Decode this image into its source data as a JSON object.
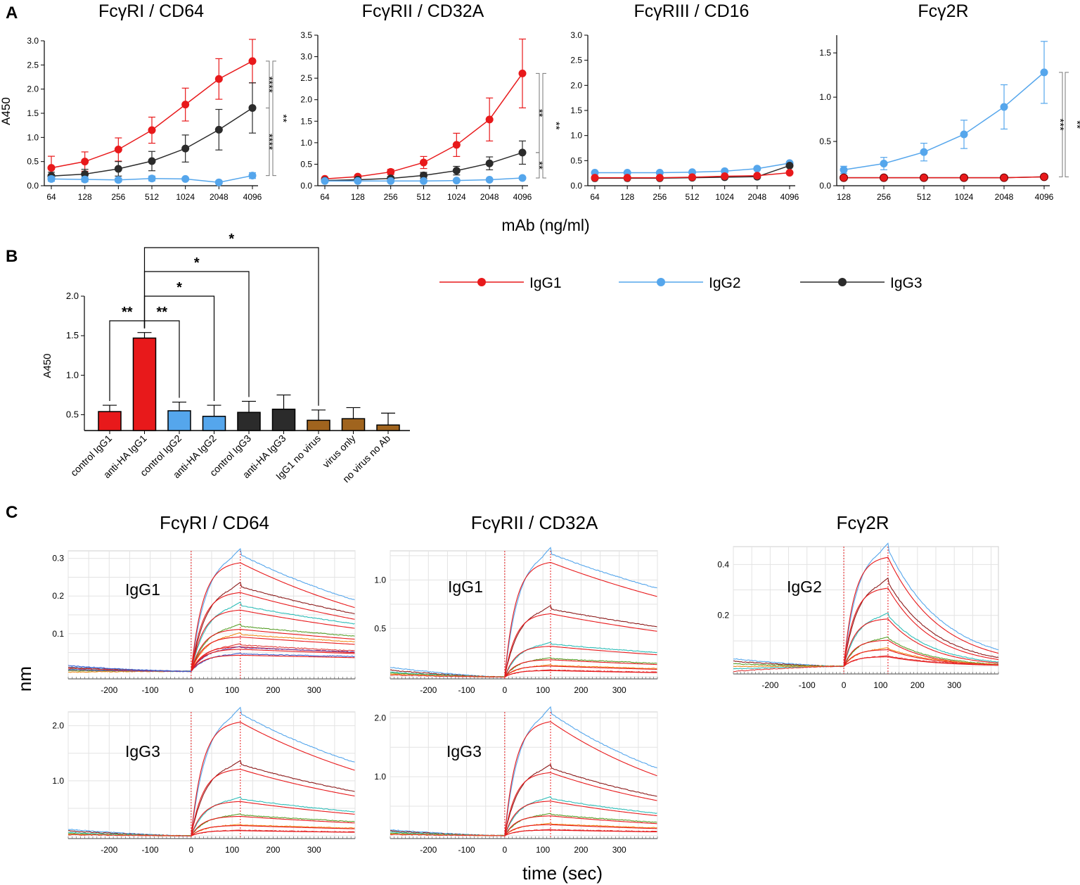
{
  "colors": {
    "igg1": "#e8191b",
    "igg2": "#55a6ec",
    "igg3": "#2b2b2b",
    "brown": "#a0641e",
    "grid": "#e3e3e3",
    "dashed": "#e8191b"
  },
  "panel_labels": {
    "a": "A",
    "b": "B",
    "c": "C"
  },
  "legend": [
    {
      "name": "IgG1",
      "color_key": "igg1"
    },
    {
      "name": "IgG2",
      "color_key": "igg2"
    },
    {
      "name": "IgG3",
      "color_key": "igg3"
    }
  ],
  "shared_labels": {
    "a_ylabel": "A450",
    "a_xlabel": "mAb (ng/ml)",
    "c_ylabel": "nm",
    "c_xlabel": "time (sec)"
  },
  "chart_data": [
    {
      "id": "a1",
      "type": "line",
      "title": "FcγRI / CD64",
      "categories": [
        "64",
        "128",
        "256",
        "512",
        "1024",
        "2048",
        "4096"
      ],
      "ylim": [
        0,
        3.0
      ],
      "yticks": [
        "0.0",
        "0.5",
        "1.0",
        "1.5",
        "2.0",
        "2.5",
        "3.0"
      ],
      "series": [
        {
          "name": "IgG1",
          "values": [
            0.37,
            0.5,
            0.75,
            1.15,
            1.68,
            2.21,
            2.58
          ],
          "errors": [
            0.24,
            0.2,
            0.24,
            0.27,
            0.34,
            0.42,
            0.45
          ]
        },
        {
          "name": "IgG3",
          "values": [
            0.2,
            0.24,
            0.35,
            0.51,
            0.77,
            1.16,
            1.61
          ],
          "errors": [
            0.08,
            0.1,
            0.15,
            0.2,
            0.28,
            0.42,
            0.52
          ]
        },
        {
          "name": "IgG2",
          "values": [
            0.14,
            0.13,
            0.12,
            0.15,
            0.14,
            0.07,
            0.21
          ],
          "errors": [
            0.05,
            0.05,
            0.04,
            0.05,
            0.03,
            0.03,
            0.06
          ]
        }
      ],
      "significance": [
        "****",
        "****",
        "**"
      ]
    },
    {
      "id": "a2",
      "type": "line",
      "title": "FcγRII / CD32A",
      "categories": [
        "64",
        "128",
        "256",
        "512",
        "1024",
        "2048",
        "4096"
      ],
      "ylim": [
        0,
        3.5
      ],
      "yticks": [
        "0.0",
        "0.5",
        "1.0",
        "1.5",
        "2.0",
        "2.5",
        "3.0",
        "3.5"
      ],
      "series": [
        {
          "name": "IgG1",
          "values": [
            0.16,
            0.21,
            0.32,
            0.54,
            0.95,
            1.54,
            2.61
          ],
          "errors": [
            0.03,
            0.04,
            0.06,
            0.14,
            0.27,
            0.5,
            0.8
          ]
        },
        {
          "name": "IgG3",
          "values": [
            0.12,
            0.14,
            0.17,
            0.24,
            0.35,
            0.52,
            0.77
          ],
          "errors": [
            0.02,
            0.03,
            0.04,
            0.07,
            0.1,
            0.15,
            0.27
          ]
        },
        {
          "name": "IgG2",
          "values": [
            0.11,
            0.11,
            0.11,
            0.11,
            0.12,
            0.14,
            0.18
          ],
          "errors": [
            0.01,
            0.01,
            0.01,
            0.01,
            0.01,
            0.01,
            0.02
          ]
        }
      ],
      "significance": [
        "**",
        "**",
        "**"
      ]
    },
    {
      "id": "a3",
      "type": "line",
      "title": "FcγRIII / CD16",
      "categories": [
        "64",
        "128",
        "256",
        "512",
        "1024",
        "2048",
        "4096"
      ],
      "ylim": [
        0,
        3.0
      ],
      "yticks": [
        "0.0",
        "0.5",
        "1.0",
        "1.5",
        "2.0",
        "2.5",
        "3.0"
      ],
      "series": [
        {
          "name": "IgG2",
          "values": [
            0.26,
            0.26,
            0.26,
            0.27,
            0.29,
            0.34,
            0.45
          ],
          "errors": [
            0,
            0,
            0,
            0,
            0,
            0,
            0
          ]
        },
        {
          "name": "IgG3",
          "values": [
            0.15,
            0.15,
            0.15,
            0.16,
            0.17,
            0.18,
            0.4
          ],
          "errors": [
            0,
            0,
            0,
            0,
            0,
            0,
            0
          ]
        },
        {
          "name": "IgG1",
          "values": [
            0.16,
            0.16,
            0.16,
            0.17,
            0.19,
            0.2,
            0.26
          ],
          "errors": [
            0,
            0,
            0,
            0,
            0,
            0,
            0
          ]
        }
      ],
      "significance": []
    },
    {
      "id": "a4",
      "type": "line",
      "title": "Fcγ2R",
      "categories": [
        "128",
        "256",
        "512",
        "1024",
        "2048",
        "4096"
      ],
      "ylim": [
        0,
        1.7
      ],
      "yticks": [
        "0.5",
        "1.0",
        "1.5"
      ],
      "ytick_values": [
        0.5,
        1.0,
        1.5
      ],
      "zero_label": "0.0",
      "series": [
        {
          "name": "IgG2",
          "values": [
            0.18,
            0.25,
            0.38,
            0.58,
            0.89,
            1.28
          ],
          "errors": [
            0.04,
            0.07,
            0.1,
            0.16,
            0.25,
            0.35
          ]
        },
        {
          "name": "IgG3",
          "values": [
            0.09,
            0.09,
            0.09,
            0.09,
            0.09,
            0.1
          ],
          "errors": [
            0,
            0,
            0,
            0,
            0,
            0
          ]
        },
        {
          "name": "IgG1",
          "values": [
            0.09,
            0.09,
            0.09,
            0.09,
            0.09,
            0.1
          ],
          "errors": [
            0,
            0,
            0,
            0,
            0,
            0
          ]
        }
      ],
      "significance": [
        "***",
        "**"
      ]
    },
    {
      "id": "b",
      "type": "bar",
      "ylabel": "A450",
      "ylim": [
        0.3,
        2.0
      ],
      "yticks": [
        "0.5",
        "1.0",
        "1.5",
        "2.0"
      ],
      "categories": [
        "control IgG1",
        "anti-HA IgG1",
        "control IgG2",
        "anti-HA IgG2",
        "control IgG3",
        "anti-HA IgG3",
        "IgG1 no virus",
        "virus only",
        "no virus no Ab"
      ],
      "values": [
        0.54,
        1.47,
        0.55,
        0.48,
        0.53,
        0.57,
        0.43,
        0.45,
        0.37
      ],
      "errors": [
        0.08,
        0.07,
        0.11,
        0.14,
        0.14,
        0.18,
        0.13,
        0.14,
        0.15
      ],
      "color_keys": [
        "igg1",
        "igg1",
        "igg2",
        "igg2",
        "igg3",
        "igg3",
        "brown",
        "brown",
        "brown"
      ],
      "significance": [
        "**",
        "**",
        "*",
        "*",
        "*"
      ]
    },
    {
      "id": "c1",
      "type": "line",
      "title": "FcγRI / CD64",
      "label": "IgG1",
      "xlim": [
        -300,
        400
      ],
      "ylim": [
        -0.02,
        0.32
      ],
      "xticks": [
        -200,
        -100,
        0,
        100,
        200,
        300
      ],
      "yticks": [
        0.1,
        0.2,
        0.3
      ],
      "ytick_labels": [
        "0.1",
        "0.2",
        "0.3"
      ],
      "curves": {
        "peaks": [
          0.31,
          0.225,
          0.175,
          0.12,
          0.098,
          0.07,
          0.063,
          0.046
        ],
        "dissociation_retained": [
          0.61,
          0.68,
          0.72,
          0.78,
          0.8,
          0.78,
          0.82,
          0.86
        ],
        "baseline_start": [
          0.012,
          0.01,
          0.006,
          0.002,
          -0.002,
          0.008,
          0.004,
          0.015
        ]
      }
    },
    {
      "id": "c2",
      "type": "line",
      "title": "FcγRII / CD32A",
      "label": "IgG1",
      "xlim": [
        -300,
        400
      ],
      "ylim": [
        -0.02,
        1.3
      ],
      "xticks": [
        -200,
        -100,
        0,
        100,
        200,
        300
      ],
      "yticks": [
        0.5,
        1.0
      ],
      "ytick_labels": [
        "0.5",
        "1.0"
      ],
      "curves": {
        "peaks": [
          1.27,
          0.7,
          0.34,
          0.19,
          0.12,
          0.07
        ],
        "dissociation_retained": [
          0.72,
          0.74,
          0.74,
          0.74,
          0.72,
          0.7
        ],
        "baseline_start": [
          0.1,
          0.07,
          0.05,
          0.04,
          0.03,
          0.02
        ]
      }
    },
    {
      "id": "c3",
      "type": "line",
      "title": "Fcγ2R",
      "label": "IgG2",
      "xlim": [
        -300,
        420
      ],
      "ylim": [
        -0.03,
        0.47
      ],
      "xticks": [
        -200,
        -100,
        0,
        100,
        200,
        300
      ],
      "yticks": [
        0.2,
        0.4
      ],
      "ytick_labels": [
        "0.2",
        "0.4"
      ],
      "curves": {
        "peaks": [
          0.46,
          0.33,
          0.2,
          0.11,
          0.07,
          0.04
        ],
        "dissociation_retained": [
          0.16,
          0.12,
          0.1,
          0.09,
          0.12,
          0.15
        ],
        "baseline_start": [
          0.03,
          0.02,
          -0.01,
          0.01,
          0.0,
          -0.02
        ]
      }
    },
    {
      "id": "c4",
      "type": "line",
      "label": "IgG3",
      "xlim": [
        -300,
        400
      ],
      "ylim": [
        -0.05,
        2.25
      ],
      "xticks": [
        -200,
        -100,
        0,
        100,
        200,
        300
      ],
      "yticks": [
        1.0,
        2.0
      ],
      "ytick_labels": [
        "1.0",
        "2.0"
      ],
      "curves": {
        "peaks": [
          2.22,
          1.3,
          0.67,
          0.38,
          0.2,
          0.1
        ],
        "dissociation_retained": [
          0.6,
          0.62,
          0.65,
          0.68,
          0.7,
          0.7
        ],
        "baseline_start": [
          0.12,
          0.09,
          0.06,
          0.04,
          0.03,
          0.02
        ]
      }
    },
    {
      "id": "c5",
      "type": "line",
      "label": "IgG3",
      "xlim": [
        -300,
        400
      ],
      "ylim": [
        -0.05,
        2.1
      ],
      "xticks": [
        -200,
        -100,
        0,
        100,
        200,
        300
      ],
      "yticks": [
        1.0,
        2.0
      ],
      "ytick_labels": [
        "1.0",
        "2.0"
      ],
      "curves": {
        "peaks": [
          2.08,
          1.15,
          0.63,
          0.36,
          0.2,
          0.1
        ],
        "dissociation_retained": [
          0.55,
          0.58,
          0.6,
          0.63,
          0.66,
          0.7
        ],
        "baseline_start": [
          0.1,
          0.08,
          0.06,
          0.04,
          0.03,
          0.02
        ]
      }
    }
  ]
}
